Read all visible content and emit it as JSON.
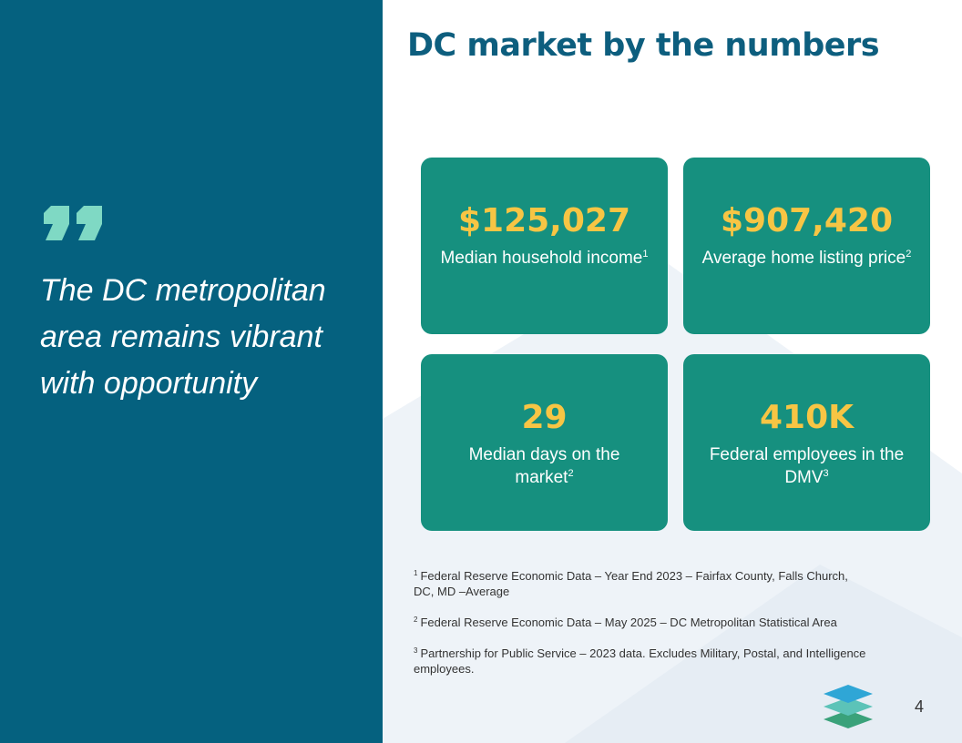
{
  "quote": {
    "text": "The DC metropolitan area remains vibrant with opportunity"
  },
  "title": "DC market by the numbers",
  "stats": [
    {
      "value": "$125,027",
      "label": "Median household income",
      "note": "1"
    },
    {
      "value": "$907,420",
      "label": "Average home listing price",
      "note": "2"
    },
    {
      "value": "29",
      "label": "Median days on the market",
      "note": "2"
    },
    {
      "value": "410K",
      "label": "Federal employees in the DMV",
      "note": "3"
    }
  ],
  "footnotes": [
    {
      "marker": "1",
      "text": "Federal Reserve Economic Data – Year End 2023 – Fairfax County, Falls Church, DC, MD –Average"
    },
    {
      "marker": "2",
      "text": "Federal Reserve Economic Data – May 2025 – DC Metropolitan Statistical Area"
    },
    {
      "marker": "3",
      "text": "Partnership for Public Service – 2023 data. Excludes Military, Postal, and Intelligence employees."
    }
  ],
  "page_number": "4"
}
